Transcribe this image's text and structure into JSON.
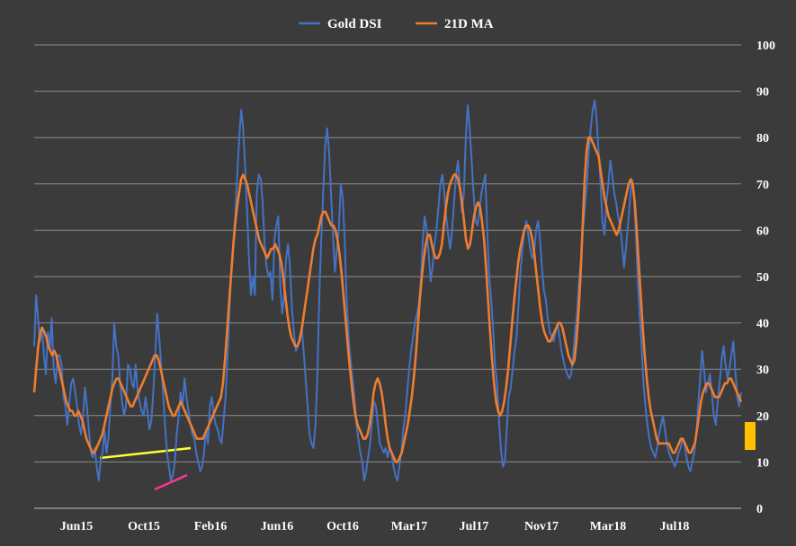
{
  "chart_data": {
    "type": "line",
    "legend_position": "top-center",
    "grid": true,
    "ylim": [
      0,
      100
    ],
    "yticks": [
      0,
      10,
      20,
      30,
      40,
      50,
      60,
      70,
      80,
      90,
      100
    ],
    "x_tick_labels": [
      "Jun15",
      "Oct15",
      "Feb16",
      "Jun16",
      "Oct16",
      "Mar17",
      "Jul17",
      "Nov17",
      "Mar18",
      "Jul18"
    ],
    "x_range_months": [
      "Apr15",
      "Jan19"
    ],
    "series": [
      {
        "name": "Gold DSI",
        "color": "#4472c4",
        "values": [
          35,
          46,
          41,
          36,
          39,
          33,
          29,
          38,
          34,
          41,
          30,
          27,
          33,
          33,
          31,
          24,
          22,
          18,
          23,
          27,
          28,
          25,
          22,
          18,
          16,
          20,
          26,
          22,
          17,
          12,
          11,
          13,
          9,
          6,
          10,
          12,
          17,
          12,
          15,
          22,
          28,
          40,
          35,
          33,
          27,
          23,
          20,
          22,
          31,
          30,
          27,
          26,
          31,
          25,
          23,
          21,
          20,
          24,
          21,
          17,
          19,
          25,
          33,
          42,
          37,
          31,
          25,
          18,
          12,
          9,
          6,
          7,
          10,
          16,
          20,
          25,
          22,
          28,
          24,
          21,
          18,
          16,
          15,
          12,
          10,
          8,
          9,
          12,
          17,
          14,
          22,
          24,
          20,
          18,
          17,
          15,
          14,
          19,
          24,
          33,
          43,
          52,
          58,
          63,
          72,
          80,
          86,
          82,
          74,
          64,
          54,
          46,
          50,
          46,
          68,
          72,
          71,
          66,
          57,
          52,
          50,
          51,
          45,
          58,
          61,
          63,
          48,
          42,
          46,
          54,
          57,
          52,
          43,
          38,
          34,
          35,
          37,
          39,
          34,
          28,
          22,
          16,
          14,
          13,
          18,
          28,
          46,
          58,
          68,
          78,
          82,
          77,
          68,
          59,
          51,
          56,
          60,
          70,
          67,
          58,
          45,
          37,
          32,
          28,
          24,
          18,
          15,
          12,
          10,
          6,
          8,
          11,
          14,
          19,
          23,
          22,
          18,
          14,
          13,
          12,
          13,
          11,
          13,
          12,
          9,
          7,
          6,
          9,
          12,
          17,
          20,
          25,
          30,
          34,
          37,
          40,
          42,
          44,
          49,
          58,
          63,
          60,
          55,
          49,
          52,
          57,
          60,
          65,
          70,
          72,
          68,
          63,
          59,
          56,
          60,
          66,
          72,
          75,
          70,
          64,
          68,
          80,
          87,
          82,
          75,
          68,
          62,
          61,
          64,
          68,
          70,
          72,
          60,
          50,
          45,
          39,
          31,
          27,
          19,
          13,
          9,
          10,
          17,
          24,
          26,
          30,
          34,
          37,
          44,
          51,
          56,
          60,
          62,
          59,
          56,
          54,
          55,
          60,
          62,
          58,
          52,
          47,
          45,
          41,
          38,
          37,
          36,
          38,
          40,
          37,
          34,
          32,
          30,
          29,
          28,
          29,
          33,
          38,
          42,
          49,
          54,
          60,
          65,
          70,
          77,
          82,
          86,
          88,
          84,
          77,
          70,
          62,
          59,
          66,
          70,
          75,
          72,
          68,
          66,
          63,
          61,
          57,
          52,
          56,
          61,
          66,
          71,
          68,
          60,
          50,
          42,
          35,
          27,
          22,
          18,
          15,
          13,
          12,
          11,
          13,
          16,
          18,
          20,
          17,
          14,
          12,
          11,
          10,
          9,
          10,
          12,
          13,
          15,
          14,
          11,
          9,
          8,
          10,
          12,
          16,
          22,
          28,
          34,
          30,
          25,
          27,
          29,
          25,
          20,
          18,
          23,
          27,
          32,
          35,
          31,
          28,
          30,
          33,
          36,
          30,
          24,
          22,
          25
        ]
      },
      {
        "name": "21D MA",
        "color": "#ed7d31",
        "values": [
          25,
          30,
          35,
          38,
          39,
          38,
          37,
          35,
          34,
          33,
          34,
          33,
          31,
          29,
          27,
          25,
          23,
          22,
          21,
          21,
          20,
          20,
          21,
          20,
          19,
          17,
          15,
          14,
          13,
          12,
          12,
          13,
          14,
          15,
          16,
          18,
          20,
          22,
          24,
          26,
          27,
          28,
          28,
          27,
          26,
          25,
          24,
          23,
          22,
          22,
          23,
          24,
          25,
          26,
          27,
          28,
          29,
          30,
          31,
          32,
          33,
          33,
          32,
          30,
          28,
          26,
          24,
          22,
          21,
          20,
          20,
          21,
          22,
          23,
          22,
          21,
          20,
          19,
          18,
          17,
          16,
          15,
          15,
          15,
          15,
          16,
          17,
          18,
          19,
          20,
          21,
          22,
          23,
          24,
          27,
          32,
          38,
          44,
          50,
          56,
          61,
          65,
          68,
          71,
          72,
          71,
          70,
          68,
          66,
          64,
          62,
          60,
          58,
          57,
          56,
          55,
          54,
          55,
          56,
          56,
          57,
          56,
          55,
          53,
          50,
          46,
          42,
          39,
          37,
          36,
          35,
          35,
          36,
          38,
          41,
          44,
          47,
          50,
          53,
          56,
          58,
          59,
          61,
          63,
          64,
          64,
          63,
          62,
          61,
          61,
          60,
          58,
          55,
          51,
          46,
          41,
          36,
          31,
          27,
          23,
          20,
          18,
          17,
          16,
          15,
          15,
          16,
          18,
          21,
          25,
          27,
          28,
          27,
          25,
          22,
          18,
          15,
          13,
          12,
          11,
          10,
          10,
          11,
          12,
          14,
          16,
          18,
          21,
          24,
          28,
          33,
          39,
          45,
          50,
          54,
          57,
          59,
          59,
          57,
          55,
          54,
          54,
          55,
          57,
          61,
          65,
          68,
          70,
          71,
          72,
          72,
          71,
          69,
          66,
          62,
          58,
          56,
          57,
          60,
          63,
          65,
          66,
          65,
          62,
          58,
          52,
          45,
          38,
          32,
          27,
          23,
          21,
          20,
          21,
          23,
          26,
          30,
          35,
          40,
          45,
          49,
          53,
          56,
          58,
          60,
          61,
          61,
          60,
          58,
          55,
          51,
          47,
          43,
          40,
          38,
          37,
          36,
          36,
          37,
          38,
          39,
          40,
          40,
          39,
          37,
          35,
          33,
          32,
          31,
          32,
          36,
          42,
          50,
          60,
          70,
          77,
          80,
          80,
          79,
          78,
          77,
          76,
          73,
          70,
          67,
          65,
          63,
          62,
          61,
          60,
          59,
          60,
          62,
          64,
          66,
          68,
          70,
          71,
          70,
          66,
          60,
          53,
          46,
          39,
          33,
          28,
          24,
          21,
          19,
          17,
          15,
          14,
          14,
          14,
          14,
          14,
          14,
          13,
          12,
          12,
          13,
          14,
          15,
          15,
          14,
          13,
          12,
          12,
          13,
          14,
          17,
          20,
          23,
          25,
          26,
          27,
          27,
          26,
          25,
          24,
          24,
          24,
          25,
          26,
          27,
          27,
          28,
          28,
          27,
          26,
          25,
          24,
          23
        ]
      }
    ],
    "annotations": [
      {
        "color": "#ffff33"
      },
      {
        "color": "#ff3399"
      },
      {
        "color": "#ffc000"
      }
    ]
  }
}
